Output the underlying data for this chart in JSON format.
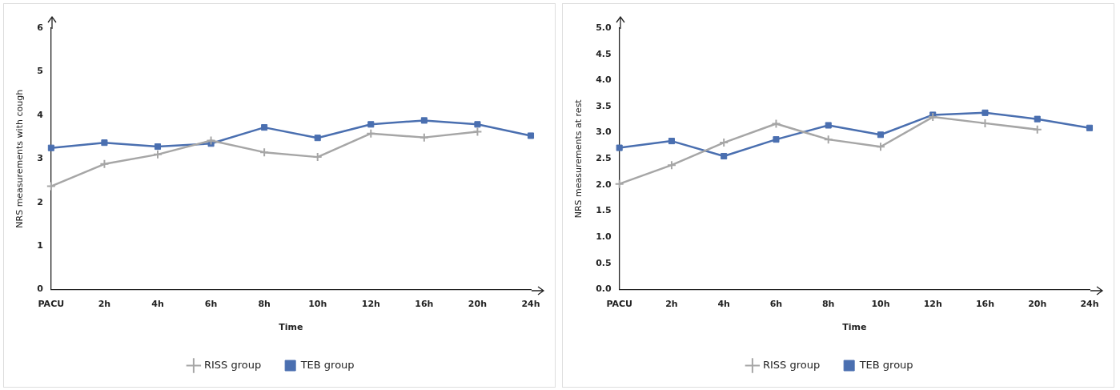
{
  "chart_data": [
    {
      "type": "line",
      "xlabel": "Time",
      "ylabel": "NRS measurements with cough",
      "categories": [
        "PACU",
        "2h",
        "4h",
        "6h",
        "8h",
        "10h",
        "12h",
        "16h",
        "20h",
        "24h"
      ],
      "series": [
        {
          "name": "TEB group",
          "color": "#4a6fb0",
          "marker": "square",
          "values": [
            3.25,
            3.37,
            3.28,
            3.35,
            3.72,
            3.48,
            3.79,
            3.88,
            3.79,
            3.53
          ]
        },
        {
          "name": "RISS group",
          "color": "#a6a6a6",
          "marker": "cross",
          "values": [
            2.37,
            2.88,
            3.1,
            3.42,
            3.15,
            3.04,
            3.58,
            3.49,
            3.62,
            null
          ]
        }
      ],
      "ylim": [
        0,
        6
      ],
      "yticks": [
        0,
        1,
        2,
        3,
        4,
        5,
        6
      ],
      "grid": false,
      "legend": "bottom",
      "line_style": "solid"
    },
    {
      "type": "line",
      "xlabel": "Time",
      "ylabel": "NRS measurements at rest",
      "categories": [
        "PACU",
        "2h",
        "4h",
        "6h",
        "8h",
        "10h",
        "12h",
        "16h",
        "20h",
        "24h"
      ],
      "series": [
        {
          "name": "TEB group",
          "color": "#4a6fb0",
          "marker": "square",
          "values": [
            2.71,
            2.84,
            2.55,
            2.87,
            3.14,
            2.96,
            3.34,
            3.38,
            3.26,
            3.09
          ]
        },
        {
          "name": "RISS group",
          "color": "#a6a6a6",
          "marker": "cross",
          "values": [
            2.02,
            2.38,
            2.81,
            3.17,
            2.87,
            2.73,
            3.3,
            3.18,
            3.06,
            null
          ]
        }
      ],
      "ylim": [
        0,
        5
      ],
      "yticks": [
        {
          "value": 0,
          "label": "0.0"
        },
        {
          "value": 0.5,
          "label": "0.5"
        },
        {
          "value": 1,
          "label": "1.0"
        },
        {
          "value": 1.5,
          "label": "1.5"
        },
        {
          "value": 2,
          "label": "2.0"
        },
        {
          "value": 2.5,
          "label": "2.5"
        },
        {
          "value": 3,
          "label": "3.0"
        },
        {
          "value": 3.5,
          "label": "3.5"
        },
        {
          "value": 4,
          "label": "4.0"
        },
        {
          "value": 4.5,
          "label": "4.5"
        },
        {
          "value": 5,
          "label": "5.0"
        }
      ],
      "grid": false,
      "legend": "bottom",
      "line_style": "solid"
    }
  ]
}
